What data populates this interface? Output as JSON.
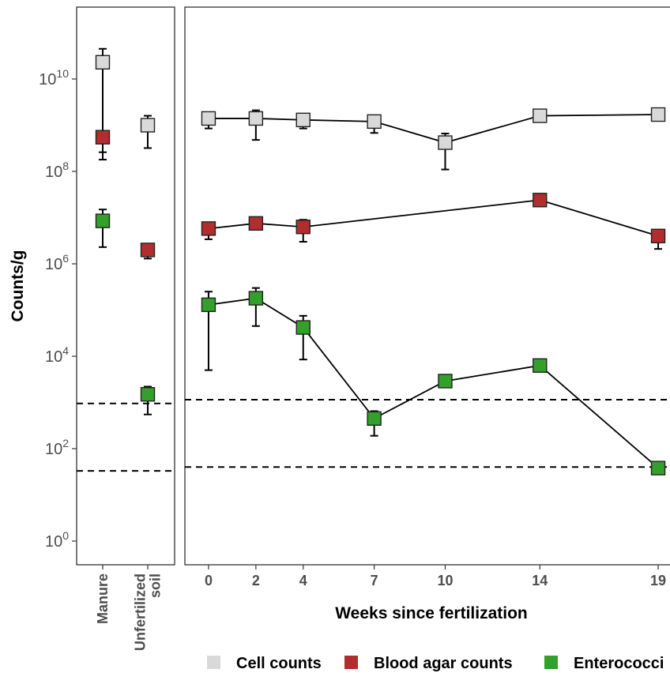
{
  "chart_data": {
    "type": "line",
    "yscale": "log10",
    "ylabel": "Counts/g",
    "ytick_labels": [
      {
        "value": 1,
        "base": "10",
        "exp": "0"
      },
      {
        "value": 100,
        "base": "10",
        "exp": "2"
      },
      {
        "value": 10000,
        "base": "10",
        "exp": "4"
      },
      {
        "value": 1000000,
        "base": "10",
        "exp": "6"
      },
      {
        "value": 100000000,
        "base": "10",
        "exp": "8"
      },
      {
        "value": 10000000000,
        "base": "10",
        "exp": "10"
      }
    ],
    "legend": [
      {
        "label": "Cell counts",
        "color": "#d9d9d9"
      },
      {
        "label": "Blood agar counts",
        "color": "#b22d2d"
      },
      {
        "label": "Enterococci",
        "color": "#33a02c"
      }
    ],
    "legend_position": "bottom",
    "panels": [
      {
        "id": "reference",
        "categories": [
          {
            "label": "Manure",
            "lines": [
              "Manure"
            ]
          },
          {
            "label": "Unfertilized soil",
            "lines": [
              "Unfertilized",
              "soil"
            ]
          }
        ],
        "series": [
          {
            "name": "Cell counts",
            "values": [
              23000000000.0,
              1000000000.0
            ],
            "err_low": [
              180000000.0,
              320000000.0
            ],
            "err_high": [
              45000000000.0,
              1600000000.0
            ]
          },
          {
            "name": "Blood agar counts",
            "values": [
              550000000.0,
              2000000.0
            ],
            "err_low": [
              260000000.0,
              1300000.0
            ],
            "err_high": [
              550000000.0,
              2000000.0
            ]
          },
          {
            "name": "Enterococci",
            "values": [
              8500000.0,
              1500.0
            ],
            "err_low": [
              2300000.0,
              550
            ],
            "err_high": [
              15000000.0,
              2200.0
            ]
          }
        ],
        "detection_limits": [
          950,
          33
        ]
      },
      {
        "id": "time-course",
        "xlabel": "Weeks since fertilization",
        "xlim": [
          -1,
          19.7
        ],
        "x": [
          0,
          2,
          4,
          7,
          10,
          14,
          19
        ],
        "series": [
          {
            "name": "Cell counts",
            "x": [
              0,
              2,
              4,
              7,
              10,
              14,
              19
            ],
            "values": [
              1400000000.0,
              1400000000.0,
              1300000000.0,
              1200000000.0,
              420000000.0,
              1600000000.0,
              1700000000.0
            ],
            "err_low": [
              850000000.0,
              480000000.0,
              850000000.0,
              680000000.0,
              110000000.0,
              1600000000.0,
              1700000000.0
            ],
            "err_high": [
              1600000000.0,
              2100000000.0,
              1600000000.0,
              1600000000.0,
              660000000.0,
              1600000000.0,
              1700000000.0
            ]
          },
          {
            "name": "Blood agar counts",
            "x": [
              0,
              2,
              4,
              14,
              19
            ],
            "values": [
              5800000.0,
              7500000.0,
              6300000.0,
              24000000.0,
              4000000.0
            ],
            "err_low": [
              3400000.0,
              7500000.0,
              3000000.0,
              24000000.0,
              2100000.0
            ],
            "err_high": [
              6500000.0,
              7500000.0,
              9000000.0,
              24000000.0,
              5500000.0
            ]
          },
          {
            "name": "Enterococci",
            "x": [
              0,
              2,
              4,
              7,
              10,
              14,
              19
            ],
            "values": [
              130000.0,
              180000.0,
              42000.0,
              450,
              2900.0,
              6300.0,
              38
            ],
            "err_low": [
              5000.0,
              45000.0,
              8500.0,
              190,
              2900.0,
              6300.0,
              38
            ],
            "err_high": [
              250000.0,
              300000.0,
              75000.0,
              650,
              2900.0,
              6300.0,
              38
            ]
          }
        ],
        "detection_limits": [
          1150,
          40
        ]
      }
    ]
  }
}
